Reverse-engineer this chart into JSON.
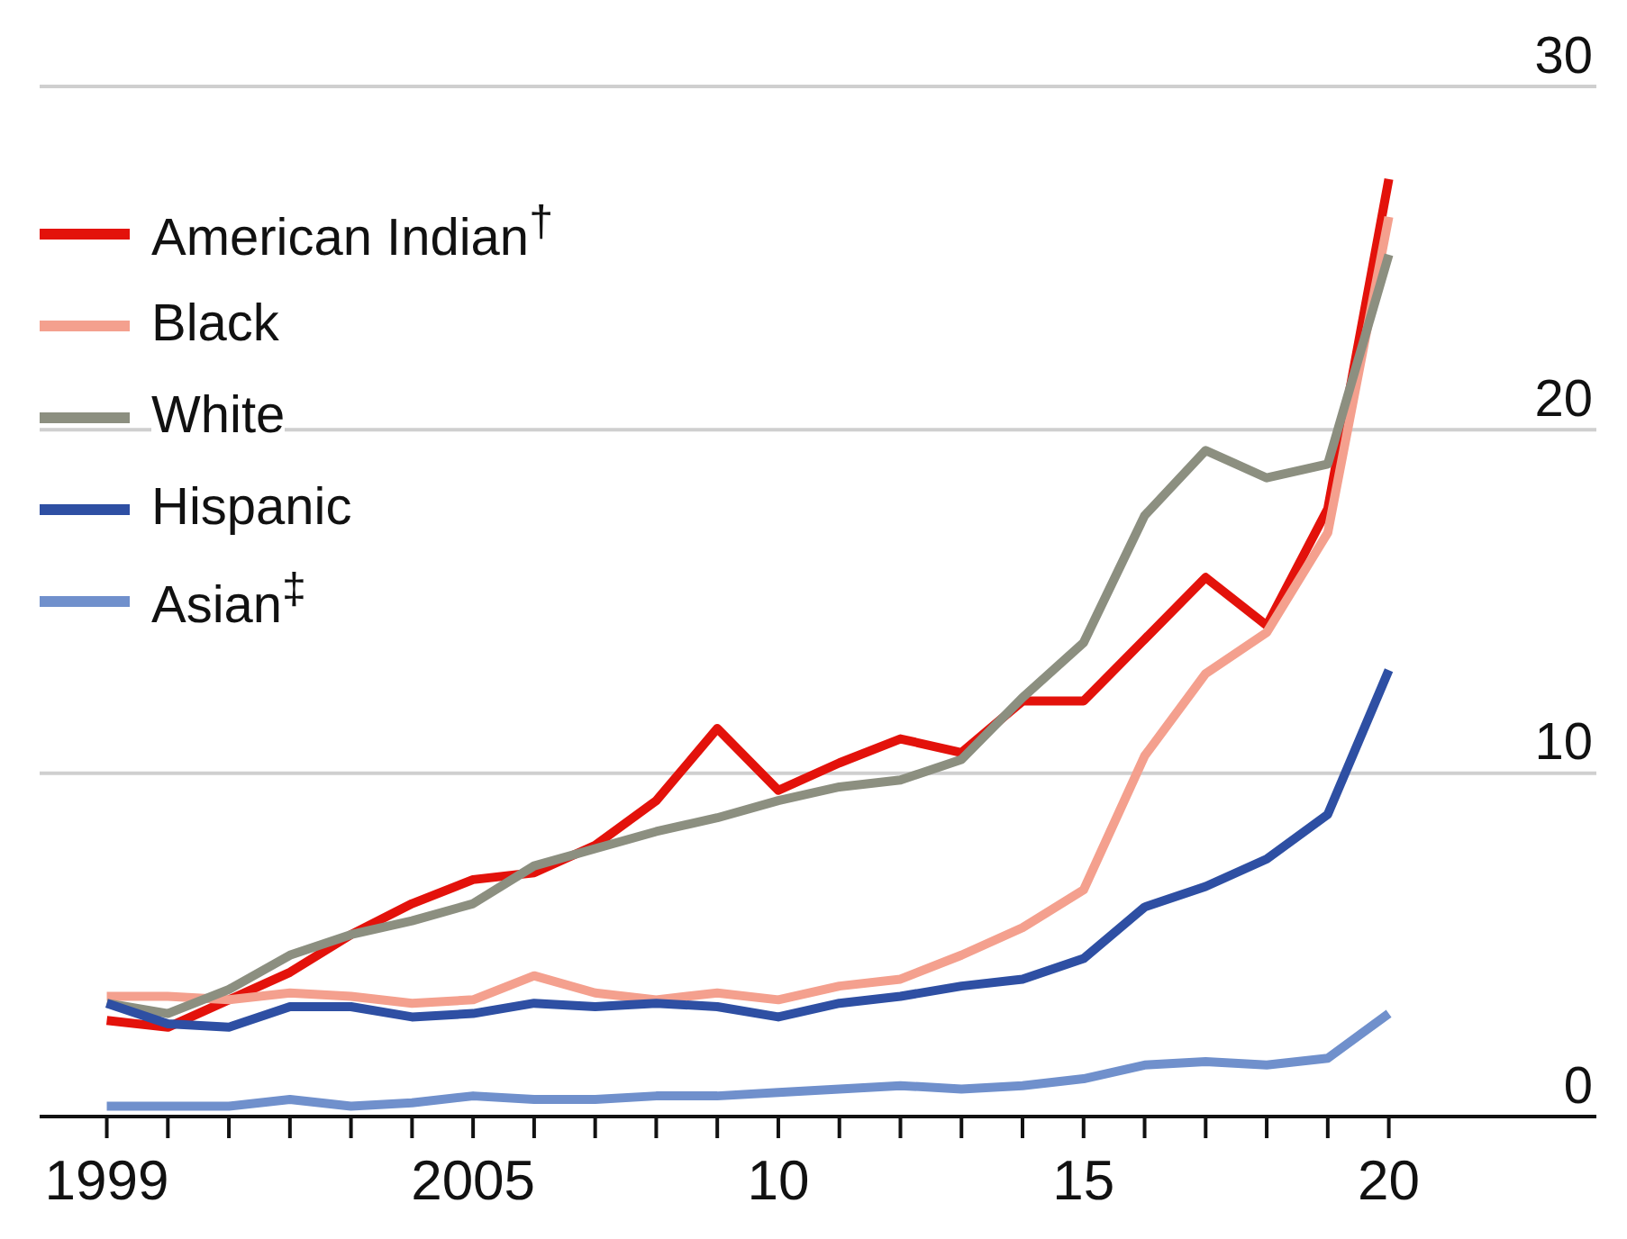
{
  "chart_data": {
    "type": "line",
    "x": [
      1999,
      2000,
      2001,
      2002,
      2003,
      2004,
      2005,
      2006,
      2007,
      2008,
      2009,
      2010,
      2011,
      2012,
      2013,
      2014,
      2015,
      2016,
      2017,
      2018,
      2019,
      2020
    ],
    "series": [
      {
        "name": "American Indian$^{†}$",
        "color": "#e3120b",
        "values": [
          2.8,
          2.6,
          3.4,
          4.2,
          5.3,
          6.2,
          6.9,
          7.1,
          7.9,
          9.2,
          11.3,
          9.5,
          10.3,
          11.0,
          10.6,
          12.1,
          12.1,
          13.9,
          15.7,
          14.3,
          17.7,
          27.3
        ]
      },
      {
        "name": "Black",
        "color": "#f4a08e",
        "values": [
          3.5,
          3.5,
          3.4,
          3.6,
          3.5,
          3.3,
          3.4,
          4.1,
          3.6,
          3.4,
          3.6,
          3.4,
          3.8,
          4.0,
          4.7,
          5.5,
          6.6,
          10.5,
          12.9,
          14.1,
          17.0,
          26.2
        ]
      },
      {
        "name": "White",
        "color": "#8c8f80",
        "values": [
          3.3,
          3.0,
          3.7,
          4.7,
          5.3,
          5.7,
          6.2,
          7.3,
          7.8,
          8.3,
          8.7,
          9.2,
          9.6,
          9.8,
          10.4,
          12.2,
          13.8,
          17.5,
          19.4,
          18.6,
          19.0,
          25.1
        ]
      },
      {
        "name": "Hispanic",
        "color": "#2e4fa3",
        "values": [
          3.3,
          2.7,
          2.6,
          3.2,
          3.2,
          2.9,
          3.0,
          3.3,
          3.2,
          3.3,
          3.2,
          2.9,
          3.3,
          3.5,
          3.8,
          4.0,
          4.6,
          6.1,
          6.7,
          7.5,
          8.8,
          13.0
        ]
      },
      {
        "name": "Asian$^{‡}$",
        "color": "#7090cc",
        "values": [
          0.3,
          0.3,
          0.3,
          0.5,
          0.3,
          0.4,
          0.6,
          0.5,
          0.5,
          0.6,
          0.6,
          0.7,
          0.8,
          0.9,
          0.8,
          0.9,
          1.1,
          1.5,
          1.6,
          1.5,
          1.7,
          3.0
        ]
      }
    ],
    "xlim": [
      1997.9,
      2023.4
    ],
    "xticks": [
      1999,
      {
        "value": 2000,
        "label": null
      },
      {
        "value": 2001,
        "label": null
      },
      {
        "value": 2002,
        "label": null
      },
      {
        "value": 2003,
        "label": null
      },
      {
        "value": 2004,
        "label": null
      },
      2005,
      {
        "value": 2006,
        "label": null
      },
      {
        "value": 2007,
        "label": null
      },
      {
        "value": 2008,
        "label": null
      },
      {
        "value": 2009,
        "label": null
      },
      {
        "value": 2010,
        "label": "10"
      },
      {
        "value": 2011,
        "label": null
      },
      {
        "value": 2012,
        "label": null
      },
      {
        "value": 2013,
        "label": null
      },
      {
        "value": 2014,
        "label": null
      },
      {
        "value": 2015,
        "label": "15"
      },
      {
        "value": 2016,
        "label": null
      },
      {
        "value": 2017,
        "label": null
      },
      {
        "value": 2018,
        "label": null
      },
      {
        "value": 2019,
        "label": null
      },
      {
        "value": 2020,
        "label": "20"
      }
    ],
    "ylim": [
      0,
      30
    ],
    "yticks": [
      0,
      10,
      20,
      30
    ],
    "grid": "y",
    "legend": "top left",
    "marker": "none",
    "line_style": "solid"
  }
}
